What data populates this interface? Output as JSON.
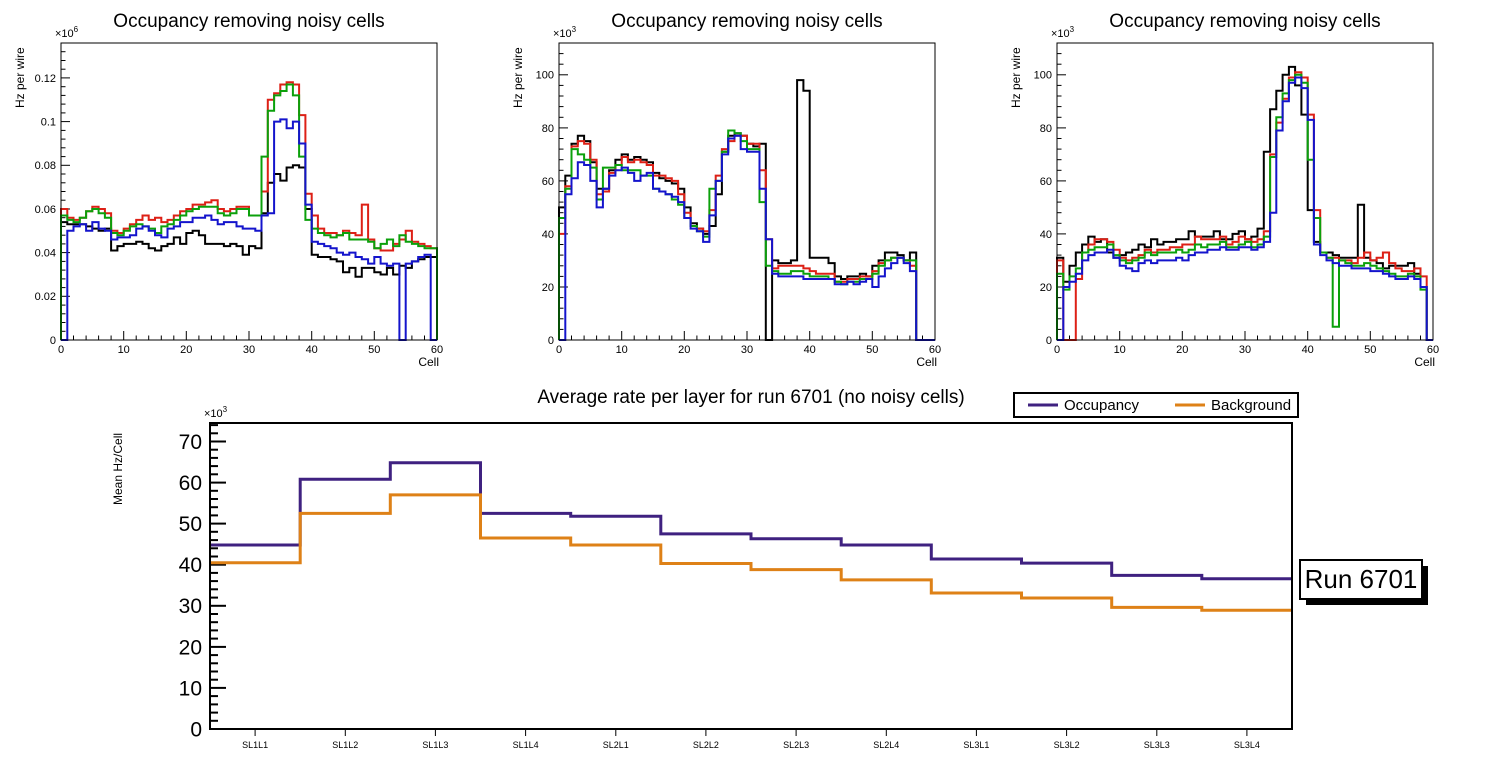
{
  "chart_data": [
    {
      "type": "step-histogram",
      "title": "Occupancy removing noisy cells",
      "xlabel": "Cell",
      "ylabel": "Hz per wire",
      "y_exponent": "6",
      "xlim": [
        0,
        60
      ],
      "ylim": [
        0,
        0.136
      ],
      "grid": false,
      "x_ticks": {
        "major": [
          0,
          10,
          20,
          30,
          40,
          50,
          60
        ],
        "labels": [
          "0",
          "10",
          "20",
          "30",
          "40",
          "50",
          "60"
        ],
        "minor_step": 2
      },
      "y_ticks": {
        "major": [
          0,
          0.02,
          0.04,
          0.06,
          0.08,
          0.1,
          0.12
        ],
        "labels": [
          "0",
          "0.02",
          "0.04",
          "0.06",
          "0.08",
          "0.1",
          "0.12"
        ],
        "minor_step": 0.004
      },
      "series": [
        {
          "name": "black-histogram",
          "color": "#000000",
          "values": [
            0.054,
            0.053,
            0.053,
            0.053,
            0.052,
            0.051,
            0.05,
            0.051,
            0.041,
            0.043,
            0.044,
            0.044,
            0.045,
            0.044,
            0.042,
            0.041,
            0.043,
            0.044,
            0.047,
            0.044,
            0.049,
            0.05,
            0.048,
            0.044,
            0.044,
            0.044,
            0.043,
            0.044,
            0.043,
            0.039,
            0.043,
            0.042,
            0.058,
            0.072,
            0.076,
            0.073,
            0.079,
            0.08,
            0.079,
            0.06,
            0.039,
            0.038,
            0.038,
            0.037,
            0.036,
            0.031,
            0.033,
            0.029,
            0.033,
            0.033,
            0.031,
            0.03,
            0.033,
            0.03,
            0.034,
            0.033,
            0.036,
            0.037,
            0.038,
            0.038
          ]
        },
        {
          "name": "red-histogram",
          "color": "#dd2016",
          "values": [
            0.06,
            0.056,
            0.055,
            0.056,
            0.059,
            0.061,
            0.06,
            0.058,
            0.05,
            0.049,
            0.051,
            0.053,
            0.055,
            0.057,
            0.055,
            0.056,
            0.054,
            0.055,
            0.057,
            0.059,
            0.06,
            0.062,
            0.062,
            0.063,
            0.064,
            0.06,
            0.059,
            0.06,
            0.061,
            0.061,
            0.057,
            0.057,
            0.068,
            0.11,
            0.113,
            0.117,
            0.118,
            0.117,
            0.103,
            0.067,
            0.057,
            0.051,
            0.049,
            0.049,
            0.048,
            0.05,
            0.049,
            0.048,
            0.062,
            0.046,
            0.042,
            0.041,
            0.041,
            0.044,
            0.046,
            0.05,
            0.045,
            0.044,
            0.043,
            0.042
          ]
        },
        {
          "name": "green-histogram",
          "color": "#0ba00b",
          "values": [
            0.057,
            0.055,
            0.054,
            0.056,
            0.059,
            0.06,
            0.058,
            0.056,
            0.049,
            0.048,
            0.05,
            0.052,
            0.053,
            0.052,
            0.051,
            0.049,
            0.052,
            0.053,
            0.055,
            0.057,
            0.059,
            0.06,
            0.061,
            0.061,
            0.061,
            0.058,
            0.057,
            0.058,
            0.06,
            0.06,
            0.057,
            0.057,
            0.084,
            0.105,
            0.112,
            0.114,
            0.117,
            0.112,
            0.084,
            0.055,
            0.051,
            0.049,
            0.048,
            0.047,
            0.048,
            0.049,
            0.046,
            0.046,
            0.046,
            0.045,
            0.042,
            0.044,
            0.046,
            0.043,
            0.048,
            0.045,
            0.044,
            0.043,
            0.042,
            0.042
          ]
        },
        {
          "name": "blue-histogram",
          "color": "#1414cc",
          "values": [
            0,
            0.05,
            0.052,
            0.053,
            0.05,
            0.054,
            0.051,
            0.05,
            0.046,
            0.047,
            0.047,
            0.048,
            0.051,
            0.052,
            0.05,
            0.048,
            0.047,
            0.051,
            0.052,
            0.054,
            0.054,
            0.056,
            0.056,
            0.057,
            0.055,
            0.053,
            0.054,
            0.054,
            0.052,
            0.051,
            0.051,
            0.05,
            0.057,
            0.058,
            0.1,
            0.101,
            0.097,
            0.1,
            0.09,
            0.062,
            0.045,
            0.044,
            0.043,
            0.042,
            0.04,
            0.039,
            0.04,
            0.038,
            0.037,
            0.035,
            0.038,
            0.035,
            0.034,
            0.035,
            0,
            0.035,
            0.036,
            0.038,
            0.039,
            0
          ]
        }
      ]
    },
    {
      "type": "step-histogram",
      "title": "Occupancy removing noisy cells",
      "xlabel": "Cell",
      "ylabel": "Hz per wire",
      "y_exponent": "3",
      "xlim": [
        0,
        60
      ],
      "ylim": [
        0,
        112
      ],
      "grid": false,
      "x_ticks": {
        "major": [
          0,
          10,
          20,
          30,
          40,
          50,
          60
        ],
        "labels": [
          "0",
          "10",
          "20",
          "30",
          "40",
          "50",
          "60"
        ],
        "minor_step": 2
      },
      "y_ticks": {
        "major": [
          0,
          20,
          40,
          60,
          80,
          100
        ],
        "labels": [
          "0",
          "20",
          "40",
          "60",
          "80",
          "100"
        ],
        "minor_step": 4
      },
      "series": [
        {
          "name": "black-histogram",
          "color": "#000000",
          "values": [
            50,
            62,
            74,
            77,
            75,
            67,
            57,
            57,
            64,
            68,
            70,
            68,
            69,
            68,
            67,
            63,
            61,
            60,
            59,
            57,
            50,
            44,
            42,
            40,
            43,
            55,
            71,
            77,
            78,
            77,
            74,
            73,
            74,
            0,
            30,
            29,
            29,
            30,
            98,
            94,
            31,
            31,
            31,
            29,
            24,
            23,
            24,
            24,
            25,
            24,
            28,
            30,
            33,
            33,
            32,
            30,
            33,
            0,
            0,
            0
          ]
        },
        {
          "name": "red-histogram",
          "color": "#dd2016",
          "values": [
            40,
            58,
            73,
            75,
            74,
            68,
            55,
            56,
            63,
            66,
            69,
            67,
            68,
            67,
            66,
            62,
            62,
            61,
            60,
            55,
            48,
            43,
            42,
            41,
            49,
            62,
            72,
            75,
            77,
            77,
            74,
            74,
            64,
            38,
            27,
            28,
            28,
            28,
            28,
            27,
            26,
            25,
            25,
            25,
            22,
            22,
            23,
            23,
            24,
            24,
            26,
            29,
            30,
            31,
            31,
            30,
            28,
            0,
            0,
            0
          ]
        },
        {
          "name": "green-histogram",
          "color": "#0ba00b",
          "values": [
            46,
            57,
            72,
            70,
            68,
            65,
            53,
            65,
            65,
            66,
            64,
            64,
            64,
            62,
            62,
            57,
            56,
            55,
            53,
            51,
            46,
            43,
            41,
            39,
            57,
            60,
            71,
            79,
            78,
            75,
            72,
            72,
            52,
            28,
            26,
            25,
            25,
            26,
            26,
            25,
            24,
            24,
            24,
            23,
            22,
            21,
            22,
            22,
            23,
            23,
            25,
            28,
            30,
            31,
            31,
            30,
            30,
            0,
            0,
            0
          ]
        },
        {
          "name": "blue-histogram",
          "color": "#1414cc",
          "values": [
            0,
            55,
            61,
            67,
            66,
            60,
            50,
            57,
            62,
            64,
            65,
            63,
            60,
            62,
            63,
            57,
            56,
            55,
            54,
            52,
            46,
            42,
            41,
            37,
            47,
            60,
            70,
            76,
            77,
            72,
            71,
            71,
            57,
            38,
            25,
            24,
            24,
            24,
            24,
            23,
            23,
            23,
            23,
            23,
            21,
            21,
            22,
            21,
            22,
            23,
            20,
            24,
            27,
            29,
            31,
            29,
            26,
            0,
            0,
            0
          ]
        }
      ]
    },
    {
      "type": "step-histogram",
      "title": "Occupancy removing noisy cells",
      "xlabel": "Cell",
      "ylabel": "Hz per wire",
      "y_exponent": "3",
      "xlim": [
        0,
        60
      ],
      "ylim": [
        0,
        112
      ],
      "grid": false,
      "x_ticks": {
        "major": [
          0,
          10,
          20,
          30,
          40,
          50,
          60
        ],
        "labels": [
          "0",
          "10",
          "20",
          "30",
          "40",
          "50",
          "60"
        ],
        "minor_step": 2
      },
      "y_ticks": {
        "major": [
          0,
          20,
          40,
          60,
          80,
          100
        ],
        "labels": [
          "0",
          "20",
          "40",
          "60",
          "80",
          "100"
        ],
        "minor_step": 4
      },
      "series": [
        {
          "name": "black-histogram",
          "color": "#000000",
          "values": [
            31,
            22,
            28,
            33,
            36,
            39,
            37,
            38,
            33,
            31,
            32,
            33,
            34,
            36,
            35,
            38,
            36,
            37,
            37,
            38,
            38,
            41,
            39,
            39,
            39,
            41,
            38,
            38,
            40,
            41,
            38,
            39,
            42,
            71,
            87,
            94,
            100,
            103,
            96,
            85,
            49,
            37,
            33,
            33,
            32,
            31,
            31,
            31,
            51,
            31,
            30,
            29,
            27,
            28,
            28,
            28,
            29,
            25,
            20,
            0
          ]
        },
        {
          "name": "red-histogram",
          "color": "#dd2016",
          "values": [
            30,
            0,
            0,
            23,
            33,
            36,
            38,
            38,
            37,
            34,
            31,
            30,
            31,
            32,
            34,
            33,
            34,
            34,
            35,
            35,
            36,
            36,
            39,
            38,
            38,
            38,
            39,
            36,
            37,
            39,
            38,
            37,
            38,
            41,
            70,
            82,
            91,
            99,
            101,
            99,
            85,
            49,
            33,
            31,
            31,
            30,
            30,
            29,
            31,
            33,
            30,
            31,
            33,
            29,
            27,
            26,
            26,
            27,
            24,
            0
          ]
        },
        {
          "name": "green-histogram",
          "color": "#0ba00b",
          "values": [
            25,
            19,
            24,
            27,
            33,
            34,
            35,
            35,
            36,
            32,
            30,
            29,
            30,
            31,
            33,
            32,
            33,
            33,
            33,
            34,
            33,
            34,
            36,
            35,
            36,
            36,
            37,
            35,
            35,
            36,
            37,
            35,
            36,
            39,
            69,
            84,
            93,
            98,
            100,
            97,
            68,
            46,
            33,
            31,
            5,
            30,
            29,
            28,
            28,
            29,
            28,
            27,
            26,
            25,
            24,
            24,
            25,
            24,
            19,
            0
          ]
        },
        {
          "name": "blue-histogram",
          "color": "#1414cc",
          "values": [
            0,
            20,
            22,
            25,
            30,
            32,
            33,
            33,
            34,
            31,
            28,
            27,
            26,
            29,
            30,
            29,
            30,
            30,
            30,
            31,
            30,
            32,
            33,
            33,
            34,
            34,
            35,
            34,
            34,
            35,
            35,
            34,
            35,
            37,
            48,
            79,
            90,
            97,
            99,
            95,
            83,
            36,
            32,
            30,
            29,
            28,
            28,
            27,
            27,
            27,
            26,
            26,
            25,
            24,
            23,
            23,
            24,
            23,
            20,
            0
          ]
        }
      ]
    },
    {
      "type": "step-histogram",
      "title": "Average rate per layer for run 6701 (no noisy cells)",
      "xlabel": "",
      "ylabel": "Mean Hz/Cell",
      "y_exponent": "3",
      "categories": [
        "SL1L1",
        "SL1L2",
        "SL1L3",
        "SL1L4",
        "SL2L1",
        "SL2L2",
        "SL2L3",
        "SL2L4",
        "SL3L1",
        "SL3L2",
        "SL3L3",
        "SL3L4"
      ],
      "ylim": [
        0,
        74.5
      ],
      "grid": false,
      "y_ticks": {
        "major": [
          0,
          10,
          20,
          30,
          40,
          50,
          60,
          70
        ],
        "labels": [
          "0",
          "10",
          "20",
          "30",
          "40",
          "50",
          "60",
          "70"
        ],
        "minor_step": 2
      },
      "legend_position": "top-right",
      "series": [
        {
          "name": "Occupancy",
          "color": "#3f2180",
          "values": [
            44.8,
            60.8,
            64.8,
            52.5,
            51.8,
            47.5,
            46.3,
            44.8,
            41.4,
            40.4,
            37.4,
            36.6
          ]
        },
        {
          "name": "Background",
          "color": "#de8117",
          "values": [
            40.5,
            52.5,
            57.0,
            46.5,
            44.8,
            40.3,
            38.8,
            36.3,
            33.1,
            31.9,
            29.6,
            28.9
          ]
        }
      ],
      "legend": [
        "Occupancy",
        "Background"
      ],
      "annotation": "Run 6701"
    }
  ]
}
